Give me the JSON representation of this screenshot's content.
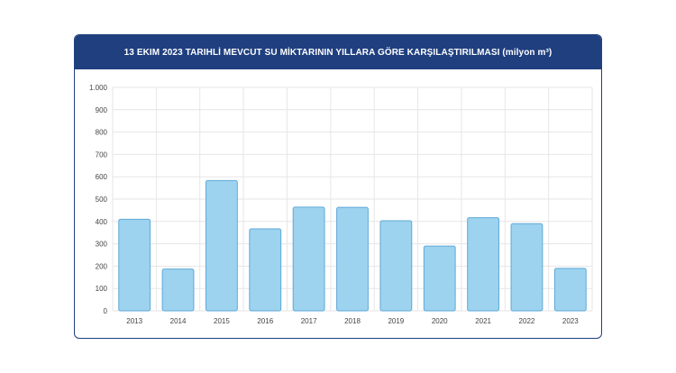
{
  "header": {
    "title": "13 EKIM 2023 TARIHLİ MEVCUT SU MİKTARININ YILLARA GÖRE KARŞILAŞTIRILMASI (milyon m³)"
  },
  "colors": {
    "header_bg": "#1f3f7f",
    "bar_fill": "#9dd3ef",
    "bar_stroke": "#5fa9d6",
    "grid": "#e6e6e6",
    "tick_text": "#444444"
  },
  "chart_data": {
    "type": "bar",
    "title": "13 EKIM 2023 TARIHLİ MEVCUT SU MİKTARININ YILLARA GÖRE KARŞILAŞTIRILMASI (milyon m³)",
    "categories": [
      "2013",
      "2014",
      "2015",
      "2016",
      "2017",
      "2018",
      "2019",
      "2020",
      "2021",
      "2022",
      "2023"
    ],
    "values": [
      410,
      187,
      583,
      367,
      464,
      463,
      403,
      290,
      417,
      390,
      190
    ],
    "ylim": [
      0,
      1000
    ],
    "yticks": [
      0,
      100,
      200,
      300,
      400,
      500,
      600,
      700,
      800,
      900,
      1000
    ],
    "ytick_labels": [
      "0",
      "100",
      "200",
      "300",
      "400",
      "500",
      "600",
      "700",
      "800",
      "900",
      "1.000"
    ],
    "grid": true,
    "legend": "none"
  }
}
